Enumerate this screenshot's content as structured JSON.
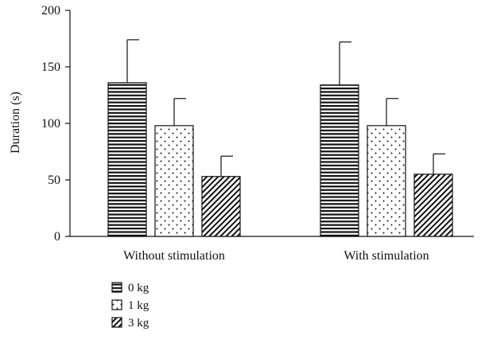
{
  "chart_data": {
    "type": "bar",
    "title": "",
    "xlabel": "",
    "ylabel": "Duration (s)",
    "ylim": [
      0,
      200
    ],
    "yticks": [
      0,
      50,
      100,
      150,
      200
    ],
    "categories": [
      "Without stimulation",
      "With stimulation"
    ],
    "series": [
      {
        "name": "0 kg",
        "pattern": "horizontal-lines",
        "values": [
          136,
          134
        ],
        "errors": [
          38,
          38
        ]
      },
      {
        "name": "1 kg",
        "pattern": "dots",
        "values": [
          98,
          98
        ],
        "errors": [
          24,
          24
        ]
      },
      {
        "name": "3 kg",
        "pattern": "diagonal-lines",
        "values": [
          53,
          55
        ],
        "errors": [
          18,
          18
        ]
      }
    ],
    "grid": false,
    "legend_position": "bottom-left"
  }
}
